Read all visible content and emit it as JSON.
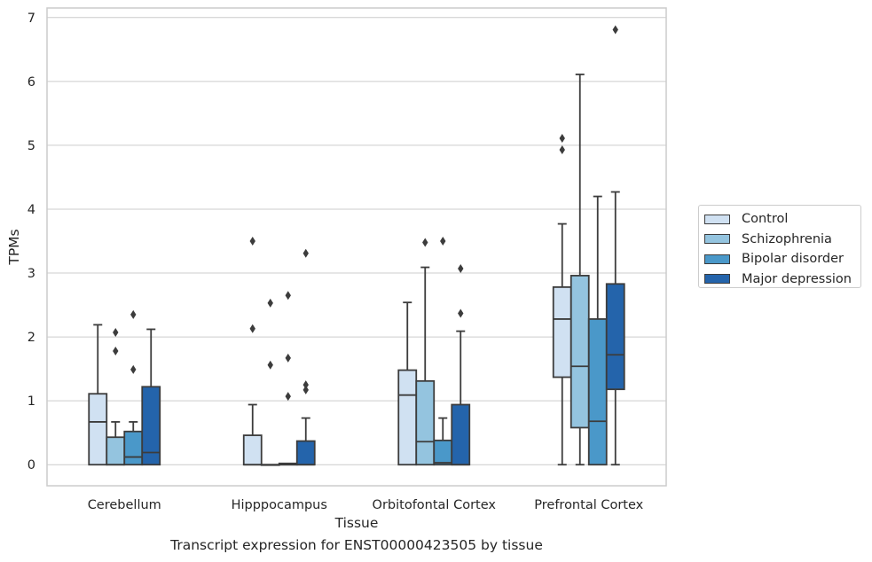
{
  "chart_data": {
    "type": "boxplot",
    "xlabel": "Tissue",
    "ylabel": "TPMs",
    "caption": "Transcript expression for ENST00000423505 by tissue",
    "ylim": [
      -0.33,
      7.15
    ],
    "yticks": [
      0,
      1,
      2,
      3,
      4,
      5,
      6,
      7
    ],
    "grid": "horizontal",
    "legend_position": "right",
    "categories": [
      "Cerebellum",
      "Hipppocampus",
      "Orbitofontal Cortex",
      "Prefrontal Cortex"
    ],
    "series": [
      {
        "name": "Control",
        "color": "#d0e1f2",
        "boxes": [
          {
            "whislo": 0,
            "q1": 0,
            "med": 0.67,
            "q3": 1.11,
            "whishi": 2.19,
            "fliers": []
          },
          {
            "whislo": 0,
            "q1": 0,
            "med": 0,
            "q3": 0.46,
            "whishi": 0.94,
            "fliers": [
              2.13,
              3.5
            ]
          },
          {
            "whislo": 0,
            "q1": 0,
            "med": 1.09,
            "q3": 1.48,
            "whishi": 2.54,
            "fliers": []
          },
          {
            "whislo": 0,
            "q1": 1.37,
            "med": 2.28,
            "q3": 2.78,
            "whishi": 3.77,
            "fliers": [
              4.93,
              5.11
            ]
          }
        ]
      },
      {
        "name": "Schizophrenia",
        "color": "#94c4df",
        "boxes": [
          {
            "whislo": 0,
            "q1": 0,
            "med": 0,
            "q3": 0.43,
            "whishi": 0.67,
            "fliers": [
              1.78,
              2.07
            ]
          },
          {
            "whislo": 0,
            "q1": 0,
            "med": 0,
            "q3": 0,
            "whishi": 0,
            "fliers": [
              1.56,
              2.53
            ]
          },
          {
            "whislo": 0,
            "q1": 0,
            "med": 0.36,
            "q3": 1.31,
            "whishi": 3.09,
            "fliers": [
              3.48
            ]
          },
          {
            "whislo": 0,
            "q1": 0.58,
            "med": 1.54,
            "q3": 2.96,
            "whishi": 6.11,
            "fliers": []
          }
        ]
      },
      {
        "name": "Bipolar disorder",
        "color": "#4a98c9",
        "boxes": [
          {
            "whislo": 0,
            "q1": 0,
            "med": 0.12,
            "q3": 0.52,
            "whishi": 0.67,
            "fliers": [
              1.49,
              2.35
            ]
          },
          {
            "whislo": 0,
            "q1": 0,
            "med": 0,
            "q3": 0.02,
            "whishi": 0.02,
            "fliers": [
              1.07,
              1.67,
              2.65
            ]
          },
          {
            "whislo": 0,
            "q1": 0,
            "med": 0.03,
            "q3": 0.38,
            "whishi": 0.73,
            "fliers": [
              3.5
            ]
          },
          {
            "whislo": 0,
            "q1": 0,
            "med": 0.68,
            "q3": 2.28,
            "whishi": 4.2,
            "fliers": []
          }
        ]
      },
      {
        "name": "Major depression",
        "color": "#2464ab",
        "boxes": [
          {
            "whislo": 0,
            "q1": 0,
            "med": 0.19,
            "q3": 1.22,
            "whishi": 2.12,
            "fliers": []
          },
          {
            "whislo": 0,
            "q1": 0,
            "med": 0,
            "q3": 0.37,
            "whishi": 0.73,
            "fliers": [
              1.17,
              1.25,
              3.31
            ]
          },
          {
            "whislo": 0,
            "q1": 0,
            "med": 0,
            "q3": 0.94,
            "whishi": 2.09,
            "fliers": [
              2.37,
              3.07
            ]
          },
          {
            "whislo": 0,
            "q1": 1.18,
            "med": 1.72,
            "q3": 2.83,
            "whishi": 4.27,
            "fliers": [
              6.81
            ]
          }
        ]
      }
    ]
  }
}
